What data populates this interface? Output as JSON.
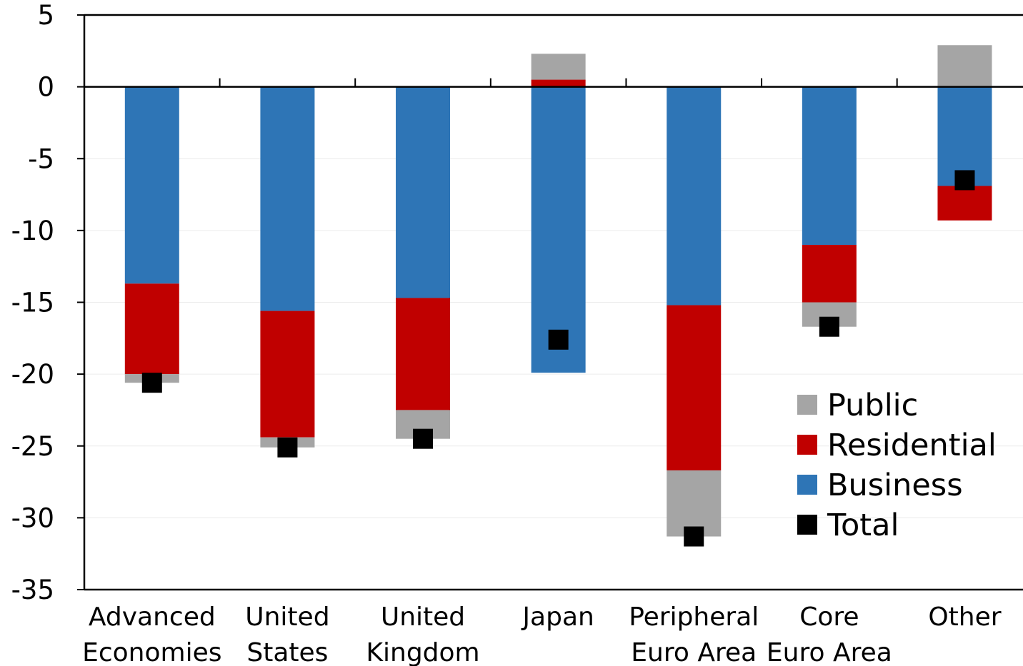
{
  "chart_data": {
    "type": "bar",
    "stacked": true,
    "categories": [
      [
        "Advanced",
        "Economies"
      ],
      [
        "United",
        "States"
      ],
      [
        "United",
        "Kingdom"
      ],
      [
        "Japan"
      ],
      [
        "Peripheral",
        "Euro Area"
      ],
      [
        "Core",
        "Euro Area"
      ],
      [
        "Other"
      ]
    ],
    "ylim": [
      -35,
      5
    ],
    "yticks": [
      5,
      0,
      -5,
      -10,
      -15,
      -20,
      -25,
      -30,
      -35
    ],
    "grid": true,
    "legend_position": "bottom-right",
    "series": [
      {
        "name": "Business",
        "color": "#2e75b6",
        "values": [
          -13.7,
          -15.6,
          -14.7,
          -19.9,
          -15.2,
          -11.0,
          -6.9
        ]
      },
      {
        "name": "Residential",
        "color": "#c00000",
        "values": [
          -6.3,
          -8.8,
          -7.8,
          0.5,
          -11.5,
          -4.0,
          -2.4
        ]
      },
      {
        "name": "Public",
        "color": "#a5a5a5",
        "values": [
          -0.6,
          -0.7,
          -2.0,
          1.8,
          -4.6,
          -1.7,
          2.9
        ]
      }
    ],
    "total": {
      "name": "Total",
      "color": "#000000",
      "values": [
        -20.6,
        -25.1,
        -24.5,
        -17.6,
        -31.3,
        -16.7,
        -6.5
      ]
    },
    "legend": [
      {
        "name": "Public",
        "color": "#a5a5a5",
        "marker": "square"
      },
      {
        "name": "Residential",
        "color": "#c00000",
        "marker": "square"
      },
      {
        "name": "Business",
        "color": "#2e75b6",
        "marker": "square"
      },
      {
        "name": "Total",
        "color": "#000000",
        "marker": "square"
      }
    ]
  }
}
